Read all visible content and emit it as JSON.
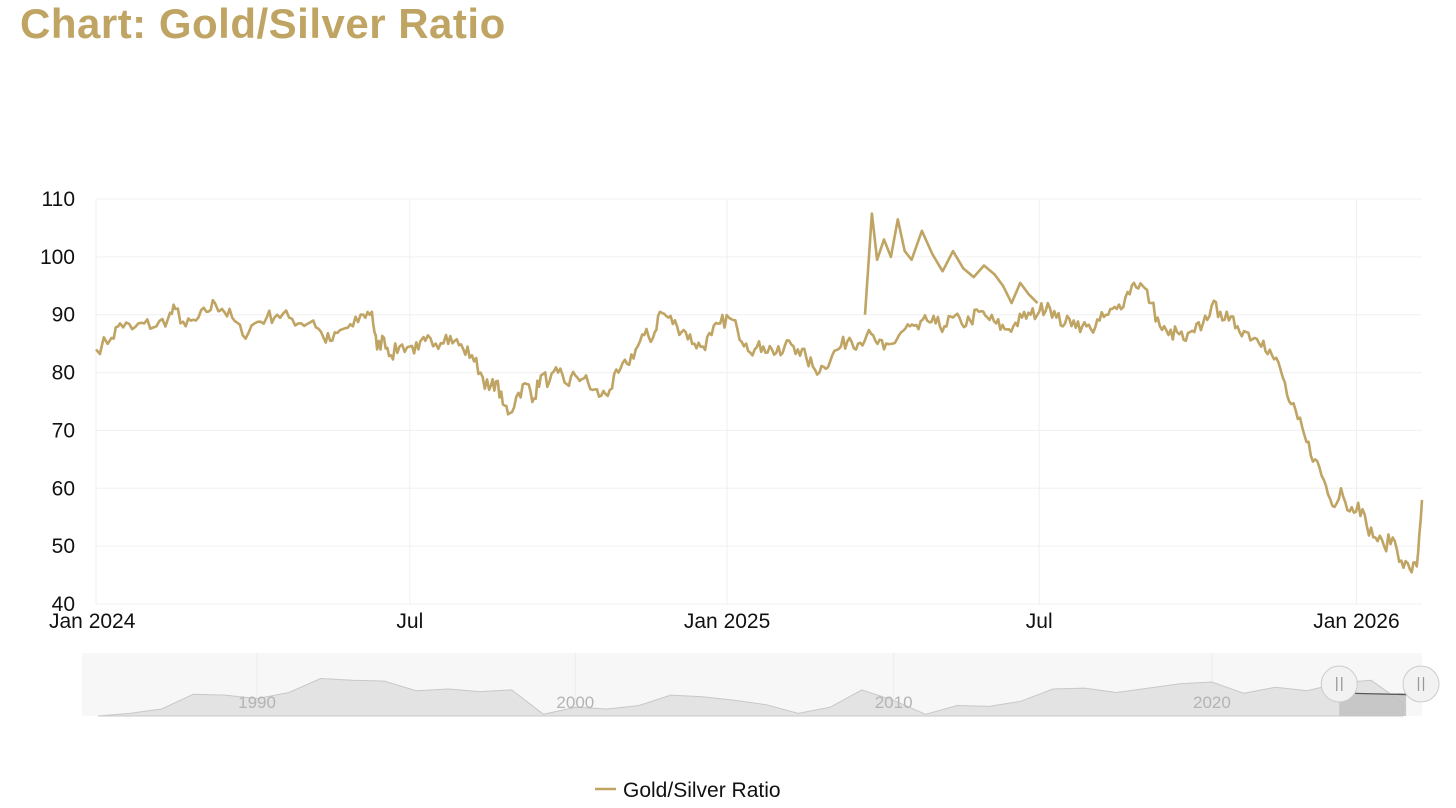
{
  "page": {
    "title": "Chart: Gold/Silver Ratio"
  },
  "colors": {
    "series": "#bfa463",
    "grid": "#f0f0f0",
    "navigator_fill": "#e3e3e3",
    "navigator_line": "#c8c8c8",
    "navigator_mask": "#c3c3c3"
  },
  "chart_data": {
    "type": "line",
    "title": "Chart: Gold/Silver Ratio",
    "xlabel": "",
    "ylabel": "",
    "ylim": [
      40,
      110
    ],
    "yticks": [
      40,
      50,
      60,
      70,
      80,
      90,
      100,
      110
    ],
    "xlim": [
      "2024-01-01",
      "2026-02-08"
    ],
    "xticks": [
      {
        "date": "2024-01-01",
        "label": "Jan 2024"
      },
      {
        "date": "2024-07-01",
        "label": "Jul"
      },
      {
        "date": "2025-01-01",
        "label": "Jan 2025"
      },
      {
        "date": "2025-07-01",
        "label": "Jul"
      },
      {
        "date": "2026-01-01",
        "label": "Jan 2026"
      }
    ],
    "grid": true,
    "legend_position": "bottom-center",
    "series": [
      {
        "name": "Gold/Silver Ratio",
        "points": [
          [
            "2024-01-01",
            84.0
          ],
          [
            "2024-01-10",
            86.0
          ],
          [
            "2024-01-15",
            88.5
          ],
          [
            "2024-01-22",
            87.5
          ],
          [
            "2024-01-29",
            88.5
          ],
          [
            "2024-02-05",
            88.0
          ],
          [
            "2024-02-12",
            89.5
          ],
          [
            "2024-02-16",
            91.0
          ],
          [
            "2024-02-22",
            88.0
          ],
          [
            "2024-02-28",
            89.0
          ],
          [
            "2024-03-05",
            90.5
          ],
          [
            "2024-03-10",
            92.0
          ],
          [
            "2024-03-14",
            91.0
          ],
          [
            "2024-03-20",
            89.5
          ],
          [
            "2024-03-26",
            86.5
          ],
          [
            "2024-04-02",
            88.5
          ],
          [
            "2024-04-09",
            89.5
          ],
          [
            "2024-04-15",
            90.0
          ],
          [
            "2024-04-22",
            89.5
          ],
          [
            "2024-04-29",
            88.5
          ],
          [
            "2024-05-06",
            89.0
          ],
          [
            "2024-05-12",
            86.0
          ],
          [
            "2024-05-17",
            85.5
          ],
          [
            "2024-05-23",
            87.5
          ],
          [
            "2024-05-29",
            88.0
          ],
          [
            "2024-06-04",
            90.0
          ],
          [
            "2024-06-09",
            90.5
          ],
          [
            "2024-06-12",
            84.0
          ],
          [
            "2024-06-16",
            86.0
          ],
          [
            "2024-06-20",
            83.0
          ],
          [
            "2024-06-25",
            84.5
          ],
          [
            "2024-07-01",
            84.5
          ],
          [
            "2024-07-06",
            84.0
          ],
          [
            "2024-07-10",
            85.5
          ],
          [
            "2024-07-16",
            85.0
          ],
          [
            "2024-07-22",
            86.5
          ],
          [
            "2024-07-27",
            85.5
          ],
          [
            "2024-08-01",
            84.0
          ],
          [
            "2024-08-06",
            83.0
          ],
          [
            "2024-08-11",
            80.0
          ],
          [
            "2024-08-16",
            77.0
          ],
          [
            "2024-08-20",
            78.5
          ],
          [
            "2024-08-24",
            74.5
          ],
          [
            "2024-08-28",
            73.0
          ],
          [
            "2024-09-02",
            76.5
          ],
          [
            "2024-09-07",
            78.0
          ],
          [
            "2024-09-11",
            75.5
          ],
          [
            "2024-09-15",
            79.5
          ],
          [
            "2024-09-20",
            78.5
          ],
          [
            "2024-09-25",
            80.0
          ],
          [
            "2024-09-30",
            78.0
          ],
          [
            "2024-10-05",
            79.5
          ],
          [
            "2024-10-10",
            79.0
          ],
          [
            "2024-10-15",
            77.0
          ],
          [
            "2024-10-20",
            76.0
          ],
          [
            "2024-10-25",
            77.0
          ],
          [
            "2024-10-30",
            80.0
          ],
          [
            "2024-11-04",
            81.5
          ],
          [
            "2024-11-09",
            84.0
          ],
          [
            "2024-11-14",
            86.5
          ],
          [
            "2024-11-19",
            86.0
          ],
          [
            "2024-11-23",
            90.5
          ],
          [
            "2024-11-28",
            89.5
          ],
          [
            "2024-12-03",
            88.0
          ],
          [
            "2024-12-08",
            87.0
          ],
          [
            "2024-12-13",
            85.0
          ],
          [
            "2024-12-18",
            84.5
          ],
          [
            "2024-12-23",
            86.5
          ],
          [
            "2024-12-28",
            88.5
          ],
          [
            "2025-01-02",
            89.5
          ],
          [
            "2025-01-07",
            87.5
          ],
          [
            "2025-01-12",
            85.0
          ],
          [
            "2025-01-17",
            84.0
          ],
          [
            "2025-01-22",
            84.5
          ],
          [
            "2025-01-27",
            84.0
          ],
          [
            "2025-02-01",
            83.0
          ],
          [
            "2025-02-06",
            85.5
          ],
          [
            "2025-02-11",
            84.0
          ],
          [
            "2025-02-16",
            82.5
          ],
          [
            "2025-02-21",
            80.5
          ],
          [
            "2025-02-26",
            81.0
          ],
          [
            "2025-03-03",
            83.0
          ],
          [
            "2025-03-08",
            84.5
          ],
          [
            "2025-03-13",
            86.0
          ],
          [
            "2025-03-18",
            85.0
          ],
          [
            "2025-03-23",
            86.5
          ],
          [
            "2025-03-28",
            85.5
          ],
          [
            "2025-04-02",
            84.0
          ],
          [
            "2025-04-07",
            85.0
          ],
          [
            "2025-04-12",
            87.0
          ],
          [
            "2025-04-17",
            88.0
          ],
          [
            "2025-04-22",
            87.5
          ],
          [
            "2025-04-27",
            89.0
          ],
          [
            "2025-05-02",
            88.5
          ],
          [
            "2025-05-07",
            88.0
          ],
          [
            "2025-05-12",
            89.5
          ],
          [
            "2025-05-17",
            88.5
          ],
          [
            "2025-05-22",
            89.0
          ],
          [
            "2025-05-27",
            90.5
          ],
          [
            "2025-06-01",
            89.5
          ],
          [
            "2025-06-06",
            88.5
          ],
          [
            "2025-06-11",
            87.5
          ],
          [
            "2025-06-16",
            88.0
          ],
          [
            "2025-06-21",
            89.5
          ],
          [
            "2025-06-26",
            90.0
          ],
          [
            "2025-07-01",
            90.5
          ],
          [
            "2025-07-06",
            92.0
          ],
          [
            "2025-07-11",
            89.5
          ],
          [
            "2025-07-16",
            88.5
          ],
          [
            "2025-07-21",
            89.0
          ],
          [
            "2025-07-26",
            88.0
          ],
          [
            "2025-07-31",
            87.5
          ],
          [
            "2025-08-05",
            89.0
          ],
          [
            "2025-08-10",
            90.0
          ],
          [
            "2025-08-15",
            91.0
          ],
          [
            "2025-08-20",
            93.0
          ],
          [
            "2025-08-25",
            95.5
          ],
          [
            "2025-08-30",
            95.0
          ],
          [
            "2025-09-04",
            92.0
          ],
          [
            "2025-09-09",
            88.0
          ],
          [
            "2025-09-14",
            86.5
          ],
          [
            "2025-09-19",
            87.0
          ],
          [
            "2025-09-24",
            85.5
          ],
          [
            "2025-09-29",
            87.0
          ],
          [
            "2025-10-04",
            88.5
          ],
          [
            "2025-10-09",
            91.5
          ],
          [
            "2025-10-14",
            90.5
          ],
          [
            "2025-10-19",
            89.0
          ],
          [
            "2025-10-24",
            88.0
          ],
          [
            "2025-10-29",
            87.0
          ],
          [
            "2025-11-03",
            86.0
          ],
          [
            "2025-11-08",
            85.5
          ],
          [
            "2025-11-13",
            83.0
          ],
          [
            "2025-11-18",
            80.5
          ],
          [
            "2025-11-23",
            75.0
          ],
          [
            "2025-11-28",
            72.0
          ],
          [
            "2025-12-03",
            68.0
          ],
          [
            "2025-12-08",
            65.0
          ],
          [
            "2025-12-13",
            61.5
          ],
          [
            "2025-12-18",
            57.0
          ],
          [
            "2025-12-23",
            60.0
          ],
          [
            "2025-12-28",
            56.0
          ],
          [
            "2026-01-02",
            57.5
          ],
          [
            "2026-01-07",
            53.5
          ],
          [
            "2026-01-12",
            51.5
          ],
          [
            "2026-01-17",
            50.0
          ],
          [
            "2026-01-22",
            51.5
          ],
          [
            "2026-01-27",
            47.5
          ],
          [
            "2026-02-01",
            46.0
          ],
          [
            "2026-02-05",
            46.5
          ],
          [
            "2026-02-08",
            58.0
          ]
        ]
      }
    ],
    "navigator": {
      "xticks": [
        "1990",
        "2000",
        "2010",
        "2020"
      ],
      "xlim": [
        1984.5,
        2026.6
      ],
      "ylim": [
        40,
        110
      ],
      "selection": [
        2024.0,
        2026.1
      ],
      "points": [
        [
          1985,
          40
        ],
        [
          1986,
          43
        ],
        [
          1987,
          48
        ],
        [
          1988,
          65
        ],
        [
          1989,
          64
        ],
        [
          1990,
          60
        ],
        [
          1991,
          67
        ],
        [
          1992,
          83
        ],
        [
          1993,
          81
        ],
        [
          1994,
          80
        ],
        [
          1995,
          69
        ],
        [
          1996,
          71
        ],
        [
          1997,
          68
        ],
        [
          1998,
          70
        ],
        [
          1999,
          42
        ],
        [
          2000,
          50
        ],
        [
          2001,
          48
        ],
        [
          2002,
          52
        ],
        [
          2003,
          64
        ],
        [
          2004,
          62
        ],
        [
          2005,
          58
        ],
        [
          2006,
          53
        ],
        [
          2007,
          43
        ],
        [
          2008,
          50
        ],
        [
          2009,
          70
        ],
        [
          2010,
          58
        ],
        [
          2011,
          42
        ],
        [
          2012,
          52
        ],
        [
          2013,
          51
        ],
        [
          2014,
          57
        ],
        [
          2015,
          71
        ],
        [
          2016,
          72
        ],
        [
          2017,
          67
        ],
        [
          2018,
          72
        ],
        [
          2019,
          77
        ],
        [
          2020,
          79
        ],
        [
          2021,
          66
        ],
        [
          2022,
          73
        ],
        [
          2023,
          69
        ],
        [
          2024,
          78
        ],
        [
          2025,
          81
        ],
        [
          2026,
          55
        ]
      ]
    }
  },
  "legend": {
    "items": [
      {
        "label": "Gold/Silver Ratio"
      }
    ]
  }
}
